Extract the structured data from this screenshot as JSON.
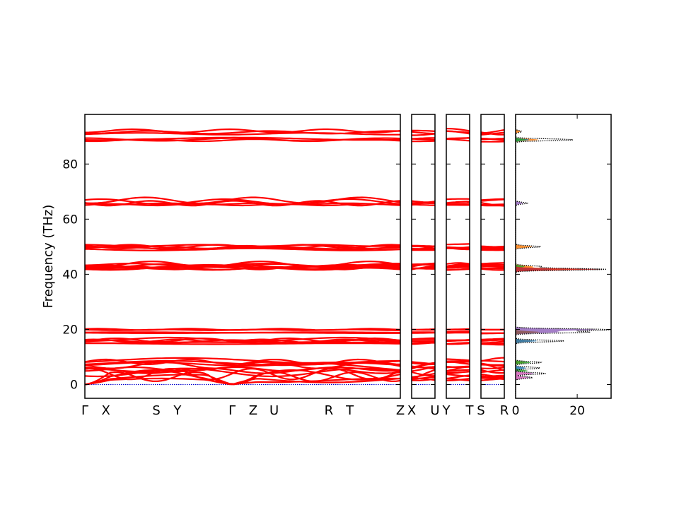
{
  "chart_data": {
    "type": "line",
    "ylabel": "Frequency (THz)",
    "ylim": [
      -5,
      98
    ],
    "yticks": [
      0,
      20,
      40,
      60,
      80
    ],
    "band_color": "#ff0000",
    "zero_line_color": "#0000cc",
    "grid": false,
    "band_segments": [
      {
        "name": "path-gamma-to-z",
        "labels": [
          "Γ",
          "X",
          "S",
          "Y",
          "Γ",
          "Z",
          "U",
          "R",
          "T",
          "Z"
        ],
        "label_positions": [
          0,
          1,
          3.4,
          4.4,
          7,
          8,
          9,
          11.6,
          12.6,
          15
        ]
      },
      {
        "name": "path-x-to-u",
        "labels": [
          "X",
          "U"
        ],
        "label_positions": [
          0,
          1
        ]
      },
      {
        "name": "path-y-to-t",
        "labels": [
          "Y",
          "T"
        ],
        "label_positions": [
          0,
          1
        ]
      },
      {
        "name": "path-s-to-r",
        "labels": [
          "S",
          "R"
        ],
        "label_positions": [
          0,
          1
        ]
      }
    ],
    "band_groups": [
      {
        "center": 91.5,
        "count": 3,
        "spread": 0.8
      },
      {
        "center": 88.9,
        "count": 3,
        "spread": 0.4
      },
      {
        "center": 66.3,
        "count": 3,
        "spread": 0.8
      },
      {
        "center": 65.4,
        "count": 2,
        "spread": 0.3
      },
      {
        "center": 50.0,
        "count": 4,
        "spread": 0.6
      },
      {
        "center": 49.2,
        "count": 2,
        "spread": 0.4
      },
      {
        "center": 43.0,
        "count": 6,
        "spread": 0.8
      },
      {
        "center": 42.2,
        "count": 3,
        "spread": 0.4
      },
      {
        "center": 19.9,
        "count": 2,
        "spread": 0.2
      },
      {
        "center": 18.8,
        "count": 2,
        "spread": 0.2
      },
      {
        "center": 16.0,
        "count": 4,
        "spread": 0.5
      },
      {
        "center": 15.0,
        "count": 2,
        "spread": 0.4
      },
      {
        "center": 7.8,
        "count": 5,
        "spread": 1.0
      },
      {
        "center": 5.0,
        "count": 5,
        "spread": 1.5
      },
      {
        "center": 2.5,
        "count": 4,
        "spread": 1.3
      }
    ],
    "dos": {
      "xlim": [
        0,
        31
      ],
      "xticks": [
        0,
        20
      ],
      "total_color": "#000000",
      "total": [
        {
          "f": 91.8,
          "v": 2.0
        },
        {
          "f": 88.8,
          "v": 18.8
        },
        {
          "f": 65.8,
          "v": 3.8
        },
        {
          "f": 50.0,
          "v": 8.2
        },
        {
          "f": 42.8,
          "v": 8.3
        },
        {
          "f": 41.8,
          "v": 29.5
        },
        {
          "f": 19.9,
          "v": 30.5
        },
        {
          "f": 19.0,
          "v": 23.6
        },
        {
          "f": 15.8,
          "v": 16.0
        },
        {
          "f": 8.0,
          "v": 8.3
        },
        {
          "f": 6.0,
          "v": 8.0
        },
        {
          "f": 4.0,
          "v": 9.8
        },
        {
          "f": 2.5,
          "v": 5.5
        }
      ],
      "partials": [
        {
          "color": "#ff7f0e",
          "peaks": [
            {
              "f": 91.8,
              "v": 1.6
            },
            {
              "f": 88.8,
              "v": 7.5
            },
            {
              "f": 50.0,
              "v": 5.5
            },
            {
              "f": 42.8,
              "v": 5.5
            },
            {
              "f": 41.8,
              "v": 22.0
            },
            {
              "f": 15.8,
              "v": 6.0
            },
            {
              "f": 8.0,
              "v": 3.0
            }
          ]
        },
        {
          "color": "#1f77b4",
          "peaks": [
            {
              "f": 88.8,
              "v": 4.5
            },
            {
              "f": 41.8,
              "v": 12.0
            },
            {
              "f": 15.8,
              "v": 7.0
            },
            {
              "f": 6.0,
              "v": 3.5
            }
          ]
        },
        {
          "color": "#2ca02c",
          "peaks": [
            {
              "f": 88.8,
              "v": 3.5
            },
            {
              "f": 42.8,
              "v": 3.0
            },
            {
              "f": 8.0,
              "v": 5.0
            },
            {
              "f": 5.0,
              "v": 4.0
            }
          ]
        },
        {
          "color": "#d62728",
          "peaks": [
            {
              "f": 41.8,
              "v": 28.0
            }
          ]
        },
        {
          "color": "#9467bd",
          "peaks": [
            {
              "f": 65.8,
              "v": 2.5
            },
            {
              "f": 19.9,
              "v": 26.0
            },
            {
              "f": 19.0,
              "v": 14.0
            },
            {
              "f": 4.0,
              "v": 6.0
            },
            {
              "f": 2.5,
              "v": 4.5
            }
          ]
        },
        {
          "color": "#8c564b",
          "peaks": [
            {
              "f": 19.0,
              "v": 8.0
            }
          ]
        },
        {
          "color": "#e377c2",
          "peaks": [
            {
              "f": 4.0,
              "v": 5.5
            },
            {
              "f": 2.5,
              "v": 4.0
            }
          ]
        }
      ]
    }
  }
}
